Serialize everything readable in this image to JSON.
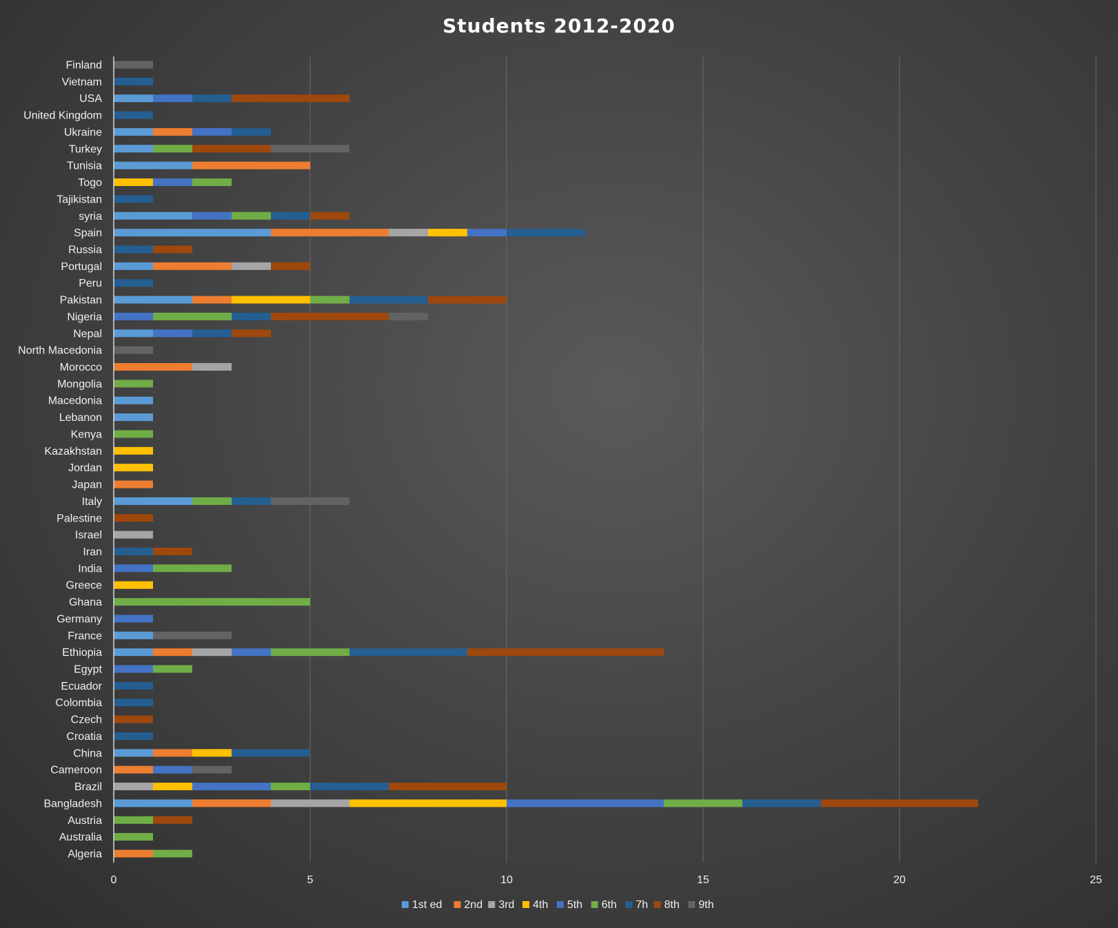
{
  "chart_data": {
    "type": "bar",
    "orientation": "horizontal",
    "stacked": true,
    "title": "Students 2012-2020",
    "xlabel": "",
    "ylabel": "",
    "xlim": [
      0,
      25
    ],
    "xticks": [
      0,
      5,
      10,
      15,
      20,
      25
    ],
    "grid": true,
    "legend_position": "bottom",
    "categories": [
      "Algeria",
      "Australia",
      "Austria",
      "Bangladesh",
      "Brazil",
      "Cameroon",
      "China",
      "Croatia",
      "Czech",
      "Colombia",
      "Ecuador",
      "Egypt",
      "Ethiopia",
      "France",
      "Germany",
      "Ghana",
      "Greece",
      "India",
      "Iran",
      "Israel",
      "Palestine",
      "Italy",
      "Japan",
      "Jordan",
      "Kazakhstan",
      "Kenya",
      "Lebanon",
      "Macedonia",
      "Mongolia",
      "Morocco",
      "North Macedonia",
      "Nepal",
      "Nigeria",
      "Pakistan",
      "Peru",
      "Portugal",
      "Russia",
      "Spain",
      "syria",
      "Tajikistan",
      "Togo",
      "Tunisia",
      "Turkey",
      "Ukraine",
      "United Kingdom",
      "USA",
      "Vietnam",
      "Finland"
    ],
    "series": [
      {
        "name": "1st ed",
        "color": "#5b9bd5",
        "values": [
          0,
          0,
          0,
          2,
          0,
          0,
          1,
          0,
          0,
          0,
          0,
          0,
          1,
          1,
          0,
          0,
          0,
          0,
          0,
          0,
          0,
          2,
          0,
          0,
          0,
          0,
          1,
          1,
          0,
          0,
          0,
          1,
          0,
          2,
          0,
          1,
          0,
          4,
          2,
          0,
          0,
          2,
          1,
          1,
          0,
          1,
          0,
          0
        ]
      },
      {
        "name": "2nd",
        "color": "#ed7d31",
        "values": [
          1,
          0,
          0,
          2,
          0,
          1,
          1,
          0,
          0,
          0,
          0,
          0,
          1,
          0,
          0,
          0,
          0,
          0,
          0,
          0,
          0,
          0,
          1,
          0,
          0,
          0,
          0,
          0,
          0,
          2,
          0,
          0,
          0,
          1,
          0,
          2,
          0,
          3,
          0,
          0,
          0,
          3,
          0,
          1,
          0,
          0,
          0,
          0
        ]
      },
      {
        "name": "3rd",
        "color": "#a5a5a5",
        "values": [
          0,
          0,
          0,
          2,
          1,
          0,
          0,
          0,
          0,
          0,
          0,
          0,
          1,
          0,
          0,
          0,
          0,
          0,
          0,
          1,
          0,
          0,
          0,
          0,
          0,
          0,
          0,
          0,
          0,
          1,
          0,
          0,
          0,
          0,
          0,
          1,
          0,
          1,
          0,
          0,
          0,
          0,
          0,
          0,
          0,
          0,
          0,
          0
        ]
      },
      {
        "name": "4th",
        "color": "#ffc000",
        "values": [
          0,
          0,
          0,
          4,
          1,
          0,
          1,
          0,
          0,
          0,
          0,
          0,
          0,
          0,
          0,
          0,
          1,
          0,
          0,
          0,
          0,
          0,
          0,
          1,
          1,
          0,
          0,
          0,
          0,
          0,
          0,
          0,
          0,
          2,
          0,
          0,
          0,
          1,
          0,
          0,
          1,
          0,
          0,
          0,
          0,
          0,
          0,
          0
        ]
      },
      {
        "name": "5th",
        "color": "#4472c4",
        "values": [
          0,
          0,
          0,
          4,
          2,
          1,
          0,
          0,
          0,
          0,
          0,
          1,
          1,
          0,
          1,
          0,
          0,
          1,
          0,
          0,
          0,
          0,
          0,
          0,
          0,
          0,
          0,
          0,
          0,
          0,
          0,
          1,
          1,
          0,
          0,
          0,
          0,
          1,
          1,
          0,
          1,
          0,
          0,
          1,
          0,
          1,
          0,
          0
        ]
      },
      {
        "name": "6th",
        "color": "#70ad47",
        "values": [
          1,
          1,
          1,
          2,
          1,
          0,
          0,
          0,
          0,
          0,
          0,
          1,
          2,
          0,
          0,
          5,
          0,
          2,
          0,
          0,
          0,
          1,
          0,
          0,
          0,
          1,
          0,
          0,
          1,
          0,
          0,
          0,
          2,
          1,
          0,
          0,
          0,
          0,
          1,
          0,
          1,
          0,
          1,
          0,
          0,
          0,
          0,
          0
        ]
      },
      {
        "name": "7h",
        "color": "#255e91",
        "values": [
          0,
          0,
          0,
          2,
          2,
          0,
          2,
          1,
          0,
          1,
          1,
          0,
          3,
          0,
          0,
          0,
          0,
          0,
          1,
          0,
          0,
          1,
          0,
          0,
          0,
          0,
          0,
          0,
          0,
          0,
          0,
          1,
          1,
          2,
          1,
          0,
          1,
          2,
          1,
          1,
          0,
          0,
          0,
          1,
          1,
          1,
          1,
          0
        ]
      },
      {
        "name": "8th",
        "color": "#9e480e",
        "values": [
          0,
          0,
          1,
          4,
          3,
          0,
          0,
          0,
          1,
          0,
          0,
          0,
          5,
          0,
          0,
          0,
          0,
          0,
          1,
          0,
          1,
          0,
          0,
          0,
          0,
          0,
          0,
          0,
          0,
          0,
          0,
          1,
          3,
          2,
          0,
          1,
          1,
          0,
          1,
          0,
          0,
          0,
          2,
          0,
          0,
          3,
          0,
          0
        ]
      },
      {
        "name": "9th",
        "color": "#636363",
        "values": [
          0,
          0,
          0,
          0,
          0,
          1,
          0,
          0,
          0,
          0,
          0,
          0,
          0,
          2,
          0,
          0,
          0,
          0,
          0,
          0,
          0,
          2,
          0,
          0,
          0,
          0,
          0,
          0,
          0,
          0,
          1,
          0,
          1,
          0,
          0,
          0,
          0,
          0,
          0,
          0,
          0,
          0,
          2,
          0,
          0,
          0,
          0,
          1
        ]
      }
    ]
  }
}
